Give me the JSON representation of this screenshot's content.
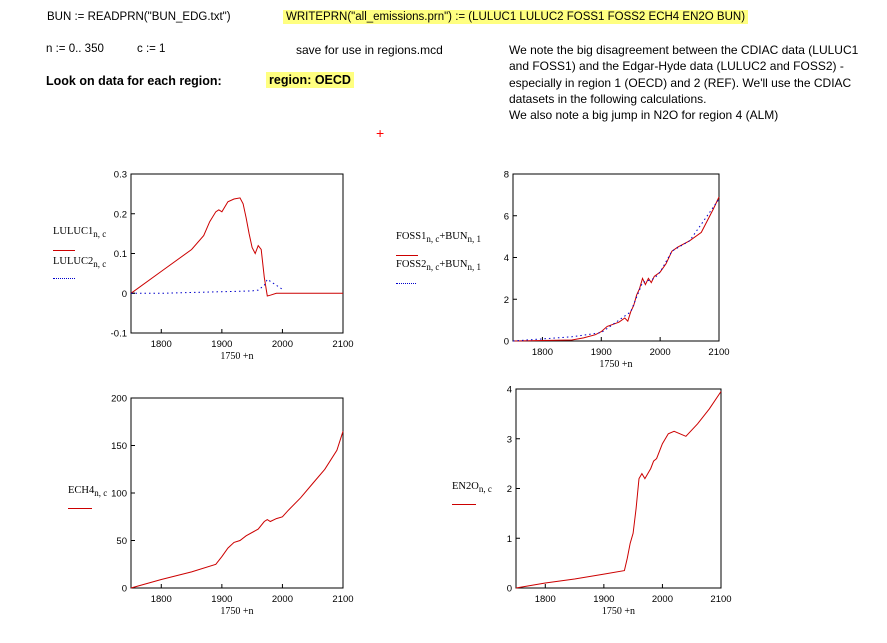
{
  "header": {
    "read_stmt": "BUN := READPRN(\"BUN_EDG.txt\")",
    "write_stmt": "WRITEPRN(\"all_emissions.prn\") := (LULUC1  LULUC2  FOSS1  FOSS2  ECH4  EN2O  BUN)",
    "range_n": "n := 0.. 350",
    "range_c": "c := 1",
    "save_note": "save for use in regions.mcd",
    "look_label": "Look on data for each region:",
    "region_label": "region: OECD"
  },
  "note_lines": [
    "We note the big disagreement between the CDIAC data (LULUC1",
    "and FOSS1) and the Edgar-Hyde data (LULUC2 and FOSS2) -",
    "especially in region 1 (OECD) and 2 (REF). We'll use the CDIAC",
    "datasets in the following calculations.",
    "We also note a big jump in N2O for region 4 (ALM)"
  ],
  "colors": {
    "series1": "#cc0000",
    "series2": "#0000cc",
    "highlight": "#ffff80"
  },
  "chart_data": [
    {
      "type": "line",
      "xlabel": "1750 +n",
      "ylim": [
        -0.1,
        0.3
      ],
      "xlim": [
        1750,
        2100
      ],
      "y_ticks": [
        "0.3",
        "0.2",
        "0.1",
        "0",
        "-0.1"
      ],
      "x_ticks": [
        "1800",
        "1900",
        "2000",
        "2100"
      ],
      "legend": [
        [
          "LULUC1",
          "n, c"
        ],
        [
          "LULUC2",
          "n, c"
        ]
      ],
      "series": [
        {
          "name": "LULUC1",
          "x": [
            1750,
            1800,
            1850,
            1870,
            1880,
            1890,
            1895,
            1900,
            1910,
            1920,
            1930,
            1935,
            1940,
            1945,
            1950,
            1955,
            1960,
            1965,
            1970,
            1975,
            1980,
            1990,
            2000,
            2050,
            2100
          ],
          "y": [
            0,
            0.055,
            0.11,
            0.145,
            0.18,
            0.205,
            0.21,
            0.205,
            0.23,
            0.237,
            0.24,
            0.225,
            0.19,
            0.15,
            0.115,
            0.1,
            0.12,
            0.11,
            0.04,
            -0.007,
            -0.005,
            0,
            0,
            0,
            0
          ]
        },
        {
          "name": "LULUC2",
          "x": [
            1750,
            1800,
            1850,
            1900,
            1950,
            1960,
            1970,
            1975,
            1980,
            1990,
            2000
          ],
          "y": [
            0,
            0,
            0.002,
            0.004,
            0.006,
            0.008,
            0.02,
            0.035,
            0.03,
            0.02,
            0.01
          ]
        }
      ]
    },
    {
      "type": "line",
      "xlabel": "1750 +n",
      "ylim": [
        0,
        8
      ],
      "xlim": [
        1750,
        2100
      ],
      "y_ticks": [
        "8",
        "6",
        "4",
        "2",
        "0"
      ],
      "x_ticks": [
        "1800",
        "1900",
        "2000",
        "2100"
      ],
      "legend": [
        [
          "FOSS1",
          "n, c",
          "+BUN",
          "n, 1"
        ],
        [
          "FOSS2",
          "n, c",
          "+BUN",
          "n, 1"
        ]
      ],
      "series": [
        {
          "name": "FOSS1",
          "x": [
            1750,
            1850,
            1870,
            1890,
            1900,
            1910,
            1920,
            1930,
            1940,
            1945,
            1950,
            1955,
            1960,
            1965,
            1970,
            1975,
            1980,
            1985,
            1990,
            2000,
            2010,
            2020,
            2030,
            2050,
            2070,
            2090,
            2100
          ],
          "y": [
            0,
            0.05,
            0.15,
            0.3,
            0.45,
            0.7,
            0.8,
            0.9,
            1.1,
            0.95,
            1.4,
            1.7,
            2.2,
            2.5,
            3.0,
            2.7,
            3.0,
            2.8,
            3.1,
            3.3,
            3.7,
            4.3,
            4.5,
            4.8,
            5.2,
            6.3,
            6.9
          ]
        },
        {
          "name": "FOSS2",
          "x": [
            1750,
            1800,
            1850,
            1900,
            1950,
            1970,
            1990,
            2000,
            2020,
            2050,
            2100
          ],
          "y": [
            0,
            0.1,
            0.2,
            0.4,
            1.4,
            2.8,
            3.0,
            3.3,
            4.3,
            4.8,
            6.8
          ]
        }
      ]
    },
    {
      "type": "line",
      "xlabel": "1750 +n",
      "ylim": [
        0,
        200
      ],
      "xlim": [
        1750,
        2100
      ],
      "y_ticks": [
        "200",
        "150",
        "100",
        "50",
        "0"
      ],
      "x_ticks": [
        "1800",
        "1900",
        "2000",
        "2100"
      ],
      "legend": [
        [
          "ECH4",
          "n, c"
        ]
      ],
      "series": [
        {
          "name": "ECH4",
          "x": [
            1750,
            1800,
            1850,
            1890,
            1900,
            1910,
            1920,
            1930,
            1940,
            1960,
            1970,
            1975,
            1980,
            1990,
            2000,
            2010,
            2030,
            2050,
            2070,
            2090,
            2100
          ],
          "y": [
            0,
            9,
            17,
            25,
            33,
            42,
            48,
            50,
            55,
            62,
            70,
            72,
            70,
            73,
            75,
            82,
            95,
            110,
            125,
            145,
            165
          ]
        }
      ]
    },
    {
      "type": "line",
      "xlabel": "1750 +n",
      "ylim": [
        0,
        4
      ],
      "xlim": [
        1750,
        2100
      ],
      "y_ticks": [
        "4",
        "3",
        "2",
        "1",
        "0"
      ],
      "x_ticks": [
        "1800",
        "1900",
        "2000",
        "2100"
      ],
      "legend": [
        [
          "EN2O",
          "n, c"
        ]
      ],
      "series": [
        {
          "name": "EN2O",
          "x": [
            1750,
            1800,
            1850,
            1900,
            1935,
            1940,
            1945,
            1950,
            1955,
            1960,
            1965,
            1970,
            1975,
            1980,
            1985,
            1990,
            2000,
            2010,
            2020,
            2030,
            2040,
            2060,
            2080,
            2100
          ],
          "y": [
            0,
            0.1,
            0.18,
            0.28,
            0.35,
            0.6,
            0.9,
            1.1,
            1.6,
            2.2,
            2.3,
            2.2,
            2.3,
            2.4,
            2.55,
            2.6,
            2.9,
            3.1,
            3.15,
            3.1,
            3.05,
            3.3,
            3.6,
            3.95
          ]
        }
      ]
    }
  ]
}
